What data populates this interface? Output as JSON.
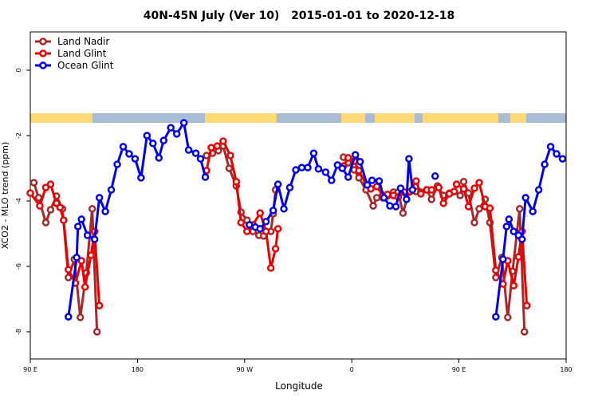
{
  "chart_data": {
    "type": "line",
    "title": "40N-45N July (Ver 10)   2015-01-01 to 2020-12-18",
    "x_label": "Longitude",
    "y_label": "XCO2 - MLO trend (ppm)",
    "xlim": [
      90,
      540
    ],
    "ylim": [
      -8.83,
      1.17
    ],
    "xticks": [
      {
        "value": 90,
        "label": "90 E"
      },
      180,
      {
        "value": 270,
        "label": "90 W"
      },
      {
        "value": 360,
        "label": "0"
      },
      {
        "value": 450,
        "label": "90 E"
      },
      180
    ],
    "yticks": [
      -8,
      -6,
      -4,
      -2,
      0
    ],
    "legend": "top-left",
    "series": [
      {
        "name": "Land Nadir",
        "color": "#a52a2a",
        "x": [
          93,
          97,
          103,
          107,
          112,
          117,
          122,
          127,
          132,
          137,
          142,
          146,
          null,
          238,
          243,
          248,
          252,
          257,
          263,
          267,
          272,
          277,
          282,
          286,
          292,
          294,
          296,
          null,
          353,
          357,
          362,
          366,
          372,
          378,
          381,
          386,
          390,
          395,
          399,
          403,
          408,
          414,
          418,
          423,
          427,
          432,
          437,
          442,
          446,
          451,
          454,
          458,
          463,
          467,
          472,
          476,
          481,
          486,
          491,
          495,
          501,
          505
        ],
        "values": [
          -3.44,
          -3.9,
          -4.66,
          -4.27,
          -3.85,
          -4.24,
          -6.34,
          -5.78,
          -7.56,
          -6.2,
          -4.24,
          -8.0,
          null,
          -2.61,
          -2.54,
          -2.46,
          -2.32,
          -3.0,
          -3.54,
          -4.34,
          -4.59,
          -4.93,
          -5.05,
          -5.07,
          -4.93,
          -4.39,
          -3.66,
          null,
          -2.66,
          -2.83,
          -3.05,
          -3.29,
          -3.66,
          -4.15,
          -3.9,
          -3.9,
          -3.85,
          -3.73,
          -3.73,
          -4.37,
          -3.73,
          -3.71,
          -3.73,
          -3.66,
          -3.95,
          -3.54,
          -3.83,
          -3.76,
          -3.71,
          -3.83,
          -3.41,
          -3.76,
          -4.66,
          -4.24,
          -3.95,
          -4.66,
          -6.34,
          -5.73,
          -7.56,
          -6.15,
          -4.24,
          -8.0
        ]
      },
      {
        "name": "Land Glint",
        "color": "#ee0000",
        "x": [
          90,
          98,
          103,
          107,
          112,
          115,
          118,
          122,
          128,
          133,
          136,
          141,
          144,
          148,
          null,
          238,
          242,
          247,
          252,
          258,
          263,
          267,
          272,
          277,
          283,
          288,
          292,
          296,
          298,
          null,
          353,
          357,
          362,
          366,
          372,
          376,
          381,
          386,
          390,
          395,
          399,
          404,
          409,
          414,
          418,
          423,
          427,
          433,
          437,
          442,
          446,
          448,
          454,
          458,
          463,
          467,
          472,
          476,
          481,
          487,
          491,
          496,
          500,
          503,
          507
        ],
        "values": [
          -3.76,
          -4.15,
          -3.59,
          -3.49,
          -4.07,
          -4.2,
          -4.59,
          -6.1,
          -6.51,
          -5.83,
          -6.63,
          -5.66,
          -4.93,
          -7.2,
          null,
          -3.07,
          -2.37,
          -2.32,
          -2.17,
          -2.61,
          -3.41,
          -4.66,
          -4.93,
          -4.73,
          -4.37,
          -4.93,
          -6.05,
          -5.46,
          -4.85,
          null,
          -2.93,
          -2.68,
          -2.78,
          -3.07,
          -3.49,
          -3.63,
          -3.56,
          -3.83,
          -3.8,
          -3.83,
          -3.88,
          -3.73,
          -3.71,
          -3.39,
          -3.78,
          -3.66,
          -3.66,
          -3.59,
          -4.07,
          -3.78,
          -3.71,
          -3.49,
          -3.63,
          -4.17,
          -3.61,
          -3.44,
          -4.17,
          -4.22,
          -6.12,
          -6.54,
          -5.83,
          -6.59,
          -5.71,
          -4.93,
          -7.2
        ]
      },
      {
        "name": "Ocean Glint",
        "color": "#0000ee",
        "x": [
          122,
          129,
          130,
          133,
          138,
          144,
          148,
          153,
          158,
          163,
          168,
          173,
          178,
          183,
          188,
          193,
          198,
          202,
          208,
          213,
          219,
          223,
          229,
          233,
          237,
          null,
          274,
          279,
          283,
          288,
          294,
          298,
          303,
          308,
          313,
          318,
          323,
          328,
          332,
          338,
          343,
          348,
          352,
          357,
          363,
          367,
          373,
          377,
          383,
          387,
          392,
          397,
          401,
          406,
          408,
          411,
          null,
          430,
          null,
          481,
          487,
          490,
          492,
          496,
          500,
          503,
          506,
          512,
          517,
          522,
          527,
          532,
          537
        ],
        "values": [
          -7.54,
          -5.73,
          -4.78,
          -4.56,
          -5.05,
          -5.17,
          -3.9,
          -4.32,
          -3.66,
          -2.88,
          -2.34,
          -2.56,
          -2.71,
          -3.29,
          -2.0,
          -2.24,
          -2.68,
          -2.15,
          -1.76,
          -1.95,
          -1.61,
          -2.44,
          -2.54,
          -2.71,
          -3.27,
          null,
          -4.73,
          -4.8,
          -4.85,
          -4.63,
          -4.29,
          -3.49,
          -4.24,
          -3.59,
          -3.05,
          -2.98,
          -2.98,
          -2.54,
          -3.02,
          -3.12,
          -3.37,
          -2.9,
          -3.0,
          -3.27,
          -2.59,
          -2.8,
          -3.51,
          -3.37,
          -3.39,
          -3.9,
          -4.15,
          -4.17,
          -3.61,
          -3.95,
          -2.71,
          -3.66,
          null,
          -3.24,
          null,
          -7.54,
          -5.78,
          -4.78,
          -4.56,
          -4.93,
          -5.05,
          -5.17,
          -3.9,
          -4.32,
          -3.66,
          -2.88,
          -2.34,
          -2.56,
          -2.71
        ]
      }
    ]
  }
}
